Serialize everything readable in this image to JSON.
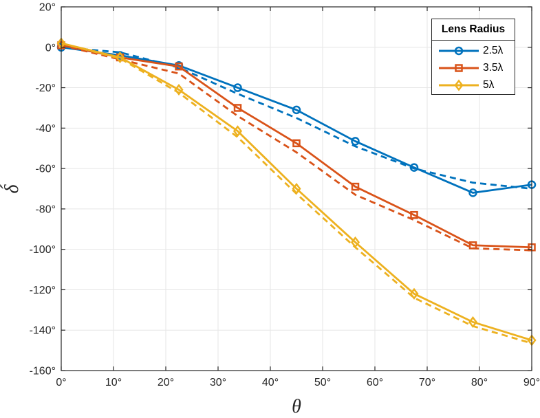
{
  "figure": {
    "background": "#ffffff",
    "axis_color": "#262626",
    "grid_color": "#e6e6e6"
  },
  "chart_data": {
    "type": "line",
    "title": "",
    "xlabel": "θ",
    "ylabel": "δ́",
    "xlim": [
      0,
      90
    ],
    "ylim": [
      -160,
      20
    ],
    "grid": true,
    "x_ticks": {
      "values": [
        0,
        10,
        20,
        30,
        40,
        50,
        60,
        70,
        80,
        90
      ],
      "labels": [
        "0°",
        "10°",
        "20°",
        "30°",
        "40°",
        "50°",
        "60°",
        "70°",
        "80°",
        "90°"
      ]
    },
    "y_ticks": {
      "values": [
        20,
        0,
        -20,
        -40,
        -60,
        -80,
        -100,
        -120,
        -140,
        -160
      ],
      "labels": [
        "20°",
        "0°",
        "-20°",
        "-40°",
        "-60°",
        "-80°",
        "-100°",
        "-120°",
        "-140°",
        "-160°"
      ]
    },
    "legend": {
      "title": "Lens Radius",
      "position": "top-right"
    },
    "x": [
      0,
      11.25,
      22.5,
      33.75,
      45,
      56.25,
      67.5,
      78.75,
      90
    ],
    "series": [
      {
        "legend_label": "2.5λ",
        "color": "#0072BD",
        "marker": "circle",
        "solid_values": [
          0,
          -4,
          -9,
          -20,
          -31,
          -46.5,
          -59.5,
          -72,
          -68
        ],
        "dashed_values": [
          0,
          -2.5,
          -10,
          -23,
          -35,
          -49,
          -60,
          -67,
          -70
        ]
      },
      {
        "legend_label": "3.5λ",
        "color": "#D95319",
        "marker": "square",
        "solid_values": [
          1,
          -5,
          -9.5,
          -30,
          -47.5,
          -69,
          -83,
          -98,
          -99
        ],
        "dashed_values": [
          1,
          -6,
          -13,
          -34,
          -52,
          -73,
          -85.5,
          -99.5,
          -100.5
        ]
      },
      {
        "legend_label": "5λ",
        "color": "#EDB120",
        "marker": "diamond",
        "solid_values": [
          2,
          -5,
          -21,
          -41.5,
          -70,
          -96.5,
          -122,
          -136,
          -145
        ],
        "dashed_values": [
          2,
          -5.5,
          -22.5,
          -44.5,
          -72.5,
          -99,
          -124,
          -138,
          -146.5
        ]
      }
    ]
  }
}
